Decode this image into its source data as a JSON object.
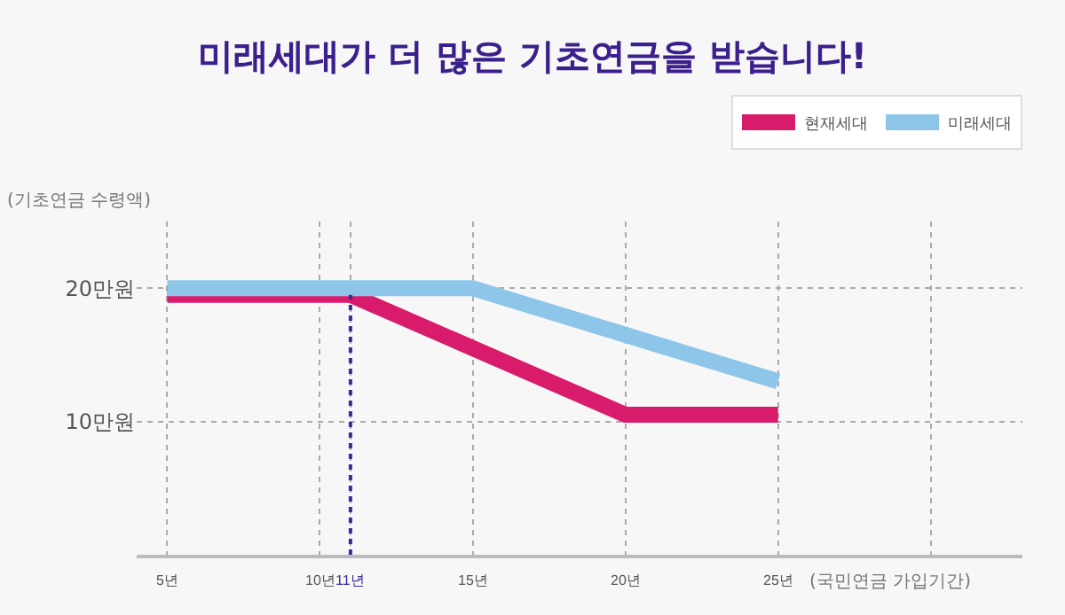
{
  "chart_data": {
    "type": "line",
    "title": "미래세대가 더 많은 기초연금을 받습니다!",
    "xlabel": "(국민연금 가입기간)",
    "ylabel": "(기초연금 수령액)",
    "series": [
      {
        "name": "현재세대",
        "color": "#d81b6a",
        "x": [
          5,
          11,
          20,
          25
        ],
        "values": [
          19.5,
          19.5,
          10.5,
          10.5
        ]
      },
      {
        "name": "미래세대",
        "color": "#8ec6ea",
        "x": [
          5,
          15,
          25
        ],
        "values": [
          20,
          20,
          13
        ]
      }
    ],
    "xlim": [
      4,
      33
    ],
    "ylim": [
      0,
      25
    ],
    "xticks": [
      {
        "value": 5,
        "label": "5년"
      },
      {
        "value": 10,
        "label": "10년"
      },
      {
        "value": 11,
        "label": "11년"
      },
      {
        "value": 15,
        "label": "15년"
      },
      {
        "value": 20,
        "label": "20년"
      },
      {
        "value": 25,
        "label": "25년"
      },
      {
        "value": 30,
        "label": null
      }
    ],
    "yticks": [
      {
        "value": 10,
        "label": "10만원"
      },
      {
        "value": 20,
        "label": "20만원"
      }
    ],
    "ref_lines": [
      {
        "axis": "x",
        "value": 11,
        "color": "#3b2b9a",
        "line_style": "dotted"
      }
    ],
    "grid": true,
    "legend": "top right",
    "marker": "none",
    "line_style": "solid"
  }
}
